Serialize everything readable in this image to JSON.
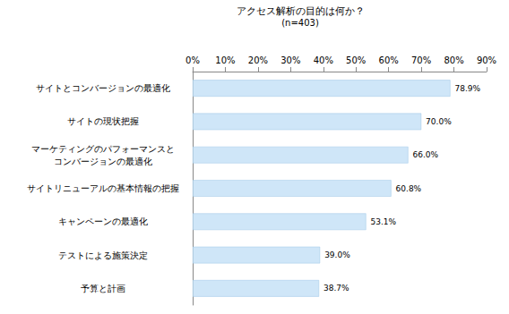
{
  "chart_data": {
    "type": "bar",
    "title": "アクセス解析の目的は何か？",
    "subtitle": "(n=403)",
    "orientation": "horizontal",
    "categories": [
      "サイトとコンバージョンの最適化",
      "サイトの現状把握",
      "マーケティングのパフォーマンスと\nコンバージョンの最適化",
      "サイトリニューアルの基本情報の把握",
      "キャンペーンの最適化",
      "テストによる施策決定",
      "予算と計画"
    ],
    "values": [
      78.9,
      70.0,
      66.0,
      60.8,
      53.1,
      39.0,
      38.7
    ],
    "value_labels": [
      "78.9%",
      "70.0%",
      "66.0%",
      "60.8%",
      "53.1%",
      "39.0%",
      "38.7%"
    ],
    "data_labels": true,
    "color": "#cfe6f8",
    "xlim": [
      0,
      90
    ],
    "xticks": [
      {
        "value": 0,
        "label": "0%"
      },
      {
        "value": 10,
        "label": "10%"
      },
      {
        "value": 20,
        "label": "20%"
      },
      {
        "value": 30,
        "label": "30%"
      },
      {
        "value": 40,
        "label": "40%"
      },
      {
        "value": 50,
        "label": "50%"
      },
      {
        "value": 60,
        "label": "60%"
      },
      {
        "value": 70,
        "label": "70%"
      },
      {
        "value": 80,
        "label": "80%"
      },
      {
        "value": 90,
        "label": "90%"
      }
    ],
    "grid": false
  }
}
